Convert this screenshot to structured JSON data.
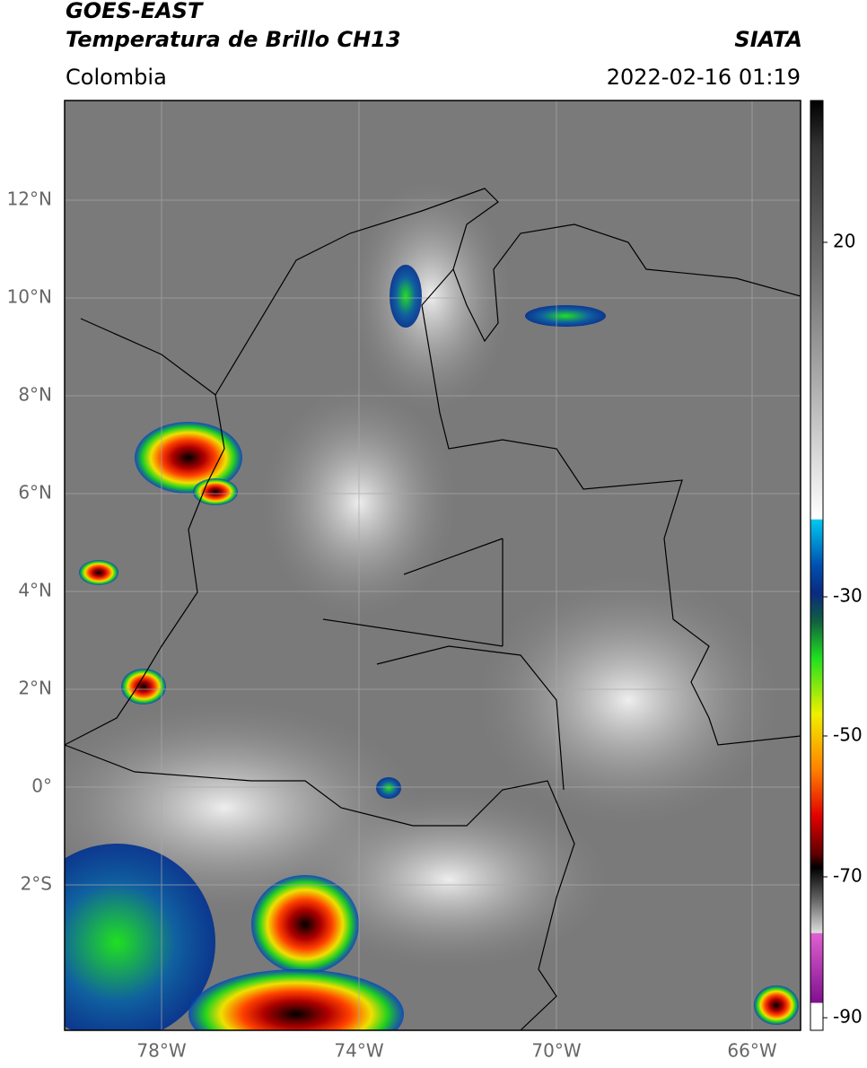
{
  "header": {
    "satellite": "GOES-EAST",
    "product": "Temperatura de Brillo CH13",
    "source": "SIATA",
    "region": "Colombia",
    "datetime": "2022-02-16 01:19"
  },
  "map": {
    "lat_labels": [
      "12°N",
      "10°N",
      "8°N",
      "6°N",
      "4°N",
      "2°N",
      "0°",
      "2°S"
    ],
    "lon_labels": [
      "78°W",
      "74°W",
      "70°W",
      "66°W"
    ]
  },
  "colorbar": {
    "labels": [
      "20",
      "-30",
      "-50",
      "-70",
      "-90"
    ]
  }
}
